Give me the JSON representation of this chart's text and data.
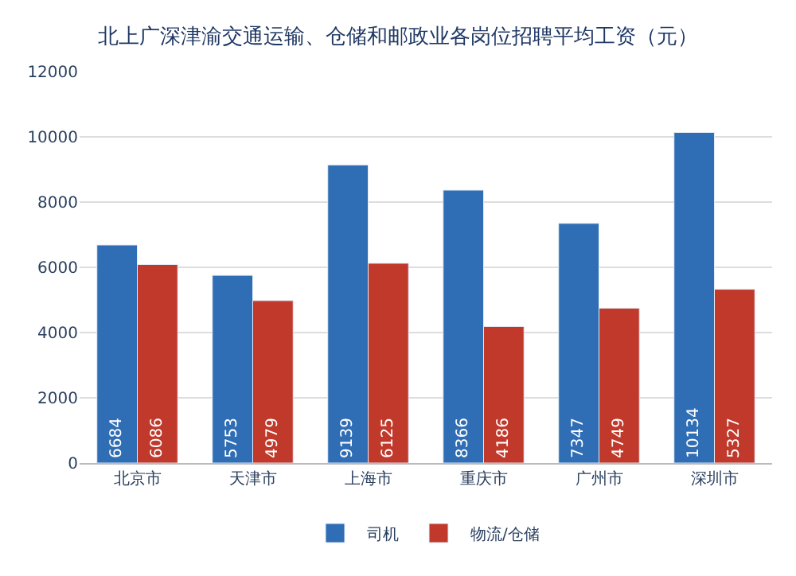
{
  "chart_data": {
    "type": "bar",
    "title": "北上广深津渝交通运输、仓储和邮政业各岗位招聘平均工资（元）",
    "categories": [
      "北京市",
      "天津市",
      "上海市",
      "重庆市",
      "广州市",
      "深圳市"
    ],
    "series": [
      {
        "name": "司机",
        "color": "#2f6db5",
        "values": [
          6684,
          5753,
          9139,
          8366,
          7347,
          10134
        ]
      },
      {
        "name": "物流/仓储",
        "color": "#c0392b",
        "values": [
          6086,
          4979,
          6125,
          4186,
          4749,
          5327
        ]
      }
    ],
    "ylim": [
      0,
      12000
    ],
    "yticks": [
      0,
      2000,
      4000,
      6000,
      8000,
      10000,
      12000
    ],
    "grid": "y",
    "legend": "bottom",
    "data_labels": true
  }
}
